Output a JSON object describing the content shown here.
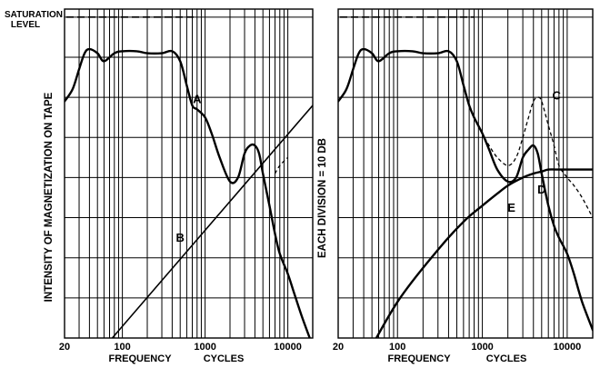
{
  "figure": {
    "saturation_label_line1": "SATURATION",
    "saturation_label_line2": "LEVEL",
    "left_ylabel": "INTENSITY OF MAGNETIZATION ON TAPE",
    "right_ylabel": "EACH DIVISION = 10 DB"
  },
  "chart_data": [
    {
      "type": "line",
      "panel": "left",
      "xlabel": "FREQUENCY CYCLES",
      "xlabel_words": [
        "FREQUENCY",
        "CYCLES"
      ],
      "x_scale": "log",
      "xlim": [
        20,
        20000
      ],
      "x_tick_labels": [
        {
          "value": 20,
          "label": "20"
        },
        {
          "value": 100,
          "label": "100"
        },
        {
          "value": 1000,
          "label": "1000"
        },
        {
          "value": 10000,
          "label": "10000"
        }
      ],
      "y_units": "divisions (10 DB each)",
      "ylim": [
        0,
        8.2
      ],
      "grid": true,
      "saturation_level": 8.0,
      "saturation_x": [
        20,
        800
      ],
      "series": [
        {
          "name": "A",
          "style": "solid",
          "x": [
            20,
            25,
            30,
            35,
            40,
            50,
            60,
            80,
            100,
            150,
            200,
            300,
            400,
            500,
            600,
            700,
            800,
            1000,
            1200,
            1500,
            2000,
            2500,
            3000,
            3500,
            4000,
            4500,
            5000,
            6000,
            7000,
            8000,
            10000,
            12000,
            15000,
            20000
          ],
          "y": [
            5.9,
            6.2,
            6.7,
            7.1,
            7.2,
            7.1,
            6.9,
            7.1,
            7.15,
            7.15,
            7.1,
            7.1,
            7.15,
            6.9,
            6.3,
            5.8,
            5.7,
            5.5,
            5.1,
            4.5,
            3.9,
            4.0,
            4.6,
            4.8,
            4.8,
            4.6,
            4.1,
            3.3,
            2.6,
            2.1,
            1.6,
            1.1,
            0.5,
            -0.2
          ]
        },
        {
          "name": "",
          "style": "dashed",
          "x": [
            7000,
            8000,
            10000
          ],
          "y": [
            4.1,
            4.3,
            4.5
          ]
        },
        {
          "name": "B",
          "style": "solid",
          "x": [
            35,
            20000
          ],
          "y": [
            -0.8,
            5.8
          ]
        }
      ],
      "annotations": [
        {
          "text": "A",
          "x": 800,
          "y": 5.85
        },
        {
          "text": "B",
          "x": 500,
          "y": 2.4
        }
      ]
    },
    {
      "type": "line",
      "panel": "right",
      "xlabel": "FREQUENCY CYCLES",
      "xlabel_words": [
        "FREQUENCY",
        "CYCLES"
      ],
      "x_scale": "log",
      "xlim": [
        20,
        20000
      ],
      "x_tick_labels": [
        {
          "value": 20,
          "label": "20"
        },
        {
          "value": 100,
          "label": "100"
        },
        {
          "value": 1000,
          "label": "1000"
        },
        {
          "value": 10000,
          "label": "10000"
        }
      ],
      "y_units": "divisions (10 DB each)",
      "ylim": [
        0,
        8.2
      ],
      "grid": true,
      "saturation_level": 8.0,
      "saturation_x": [
        20,
        800
      ],
      "series": [
        {
          "name": "C",
          "style": "dashed",
          "x": [
            20,
            25,
            30,
            35,
            40,
            50,
            60,
            80,
            100,
            150,
            200,
            300,
            400,
            500,
            600,
            700,
            800,
            1000,
            1200,
            1500,
            2000,
            2500,
            3000,
            3500,
            4000,
            4500,
            5000,
            6000,
            7000,
            8000,
            10000,
            12000,
            15000,
            20000
          ],
          "y": [
            5.9,
            6.2,
            6.7,
            7.1,
            7.2,
            7.1,
            6.9,
            7.1,
            7.15,
            7.15,
            7.1,
            7.1,
            7.15,
            6.9,
            6.3,
            5.8,
            5.5,
            5.1,
            4.8,
            4.5,
            4.3,
            4.5,
            5.0,
            5.5,
            5.9,
            6.0,
            5.9,
            5.3,
            4.8,
            4.3,
            4.0,
            3.8,
            3.5,
            3.0
          ]
        },
        {
          "name": "D",
          "style": "solid",
          "x": [
            20,
            25,
            30,
            35,
            40,
            50,
            60,
            80,
            100,
            150,
            200,
            300,
            400,
            500,
            600,
            700,
            800,
            1000,
            1200,
            1500,
            2000,
            2500,
            3000,
            3500,
            4000,
            4500,
            5000,
            6000,
            7000,
            8000,
            10000,
            12000,
            15000,
            20000
          ],
          "y": [
            5.9,
            6.2,
            6.7,
            7.1,
            7.2,
            7.1,
            6.9,
            7.1,
            7.15,
            7.15,
            7.1,
            7.1,
            7.15,
            6.9,
            6.3,
            5.8,
            5.5,
            5.1,
            4.7,
            4.2,
            3.9,
            4.0,
            4.5,
            4.7,
            4.8,
            4.6,
            4.1,
            3.3,
            2.8,
            2.5,
            2.1,
            1.6,
            0.9,
            0.2
          ]
        },
        {
          "name": "E",
          "style": "solid",
          "x": [
            35,
            100,
            300,
            600,
            1000,
            1500,
            2000,
            3000,
            4000,
            5000,
            6000,
            8000,
            10000,
            15000,
            20000
          ],
          "y": [
            -0.8,
            0.9,
            2.2,
            2.9,
            3.3,
            3.6,
            3.8,
            4.0,
            4.1,
            4.15,
            4.2,
            4.2,
            4.2,
            4.2,
            4.2
          ]
        }
      ],
      "annotations": [
        {
          "text": "C",
          "x": 7500,
          "y": 5.95
        },
        {
          "text": "D",
          "x": 5000,
          "y": 3.6
        },
        {
          "text": "E",
          "x": 2200,
          "y": 3.15
        }
      ]
    }
  ]
}
